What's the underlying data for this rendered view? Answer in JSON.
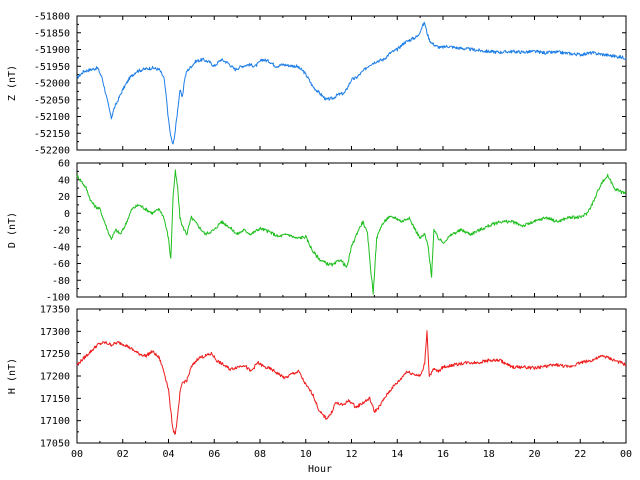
{
  "chart_data": [
    {
      "type": "line",
      "ylabel": "Z (nT)",
      "ylim": [
        -52200,
        -51800
      ],
      "yticks": [
        -51800,
        -51850,
        -51900,
        -51950,
        -52000,
        -52050,
        -52100,
        -52150,
        -52200
      ],
      "xlim": [
        0,
        24
      ],
      "grid": false,
      "series": [
        {
          "color": "#1e7ee6",
          "x": [
            0,
            0.3,
            0.6,
            0.9,
            1.1,
            1.3,
            1.5,
            1.6,
            1.8,
            2.0,
            2.3,
            2.6,
            3.0,
            3.3,
            3.6,
            3.8,
            3.9,
            4.0,
            4.1,
            4.2,
            4.3,
            4.4,
            4.5,
            4.6,
            4.7,
            4.8,
            5.0,
            5.2,
            5.5,
            5.8,
            6.0,
            6.3,
            6.6,
            6.9,
            7.2,
            7.5,
            7.8,
            8.1,
            8.4,
            8.7,
            9.0,
            9.3,
            9.6,
            9.9,
            10.1,
            10.3,
            10.6,
            10.9,
            11.2,
            11.4,
            11.7,
            12.0,
            12.2,
            12.5,
            12.8,
            13.1,
            13.4,
            13.7,
            14.0,
            14.3,
            14.6,
            14.9,
            15.1,
            15.2,
            15.3,
            15.4,
            15.5,
            15.6,
            15.7,
            15.9,
            16.2,
            16.6,
            17.0,
            17.5,
            18.0,
            18.5,
            19.0,
            19.5,
            20.0,
            20.5,
            21.0,
            21.5,
            22.0,
            22.5,
            23.0,
            23.5,
            24.0
          ],
          "values": [
            -51985,
            -51965,
            -51960,
            -51955,
            -51985,
            -52045,
            -52105,
            -52080,
            -52050,
            -52020,
            -51985,
            -51965,
            -51958,
            -51955,
            -51960,
            -51985,
            -52040,
            -52110,
            -52160,
            -52185,
            -52140,
            -52080,
            -52020,
            -52045,
            -51990,
            -51965,
            -51950,
            -51935,
            -51930,
            -51938,
            -51950,
            -51930,
            -51940,
            -51960,
            -51950,
            -51945,
            -51950,
            -51930,
            -51935,
            -51950,
            -51945,
            -51948,
            -51950,
            -51965,
            -51985,
            -52010,
            -52030,
            -52050,
            -52045,
            -52035,
            -52030,
            -51990,
            -51985,
            -51965,
            -51945,
            -51935,
            -51930,
            -51910,
            -51900,
            -51880,
            -51870,
            -51860,
            -51830,
            -51820,
            -51850,
            -51870,
            -51880,
            -51885,
            -51890,
            -51895,
            -51890,
            -51895,
            -51898,
            -51902,
            -51906,
            -51908,
            -51906,
            -51908,
            -51906,
            -51910,
            -51908,
            -51912,
            -51915,
            -51910,
            -51915,
            -51920,
            -51925
          ]
        }
      ]
    },
    {
      "type": "line",
      "ylabel": "D (nT)",
      "ylim": [
        -100,
        60
      ],
      "yticks": [
        60,
        40,
        20,
        0,
        -20,
        -40,
        -60,
        -80,
        -100
      ],
      "xlim": [
        0,
        24
      ],
      "grid": false,
      "series": [
        {
          "color": "#1fbf1f",
          "x": [
            0,
            0.2,
            0.4,
            0.6,
            0.8,
            1.0,
            1.2,
            1.4,
            1.5,
            1.7,
            1.9,
            2.1,
            2.4,
            2.7,
            3.0,
            3.3,
            3.6,
            3.8,
            4.0,
            4.1,
            4.2,
            4.3,
            4.4,
            4.5,
            4.6,
            4.8,
            5.0,
            5.3,
            5.6,
            6.0,
            6.3,
            6.6,
            7.0,
            7.3,
            7.6,
            8.0,
            8.4,
            8.8,
            9.2,
            9.6,
            10.0,
            10.3,
            10.6,
            10.9,
            11.2,
            11.5,
            11.8,
            12.0,
            12.3,
            12.5,
            12.7,
            12.85,
            12.95,
            13.1,
            13.3,
            13.6,
            13.9,
            14.2,
            14.5,
            14.8,
            15.0,
            15.2,
            15.35,
            15.5,
            15.6,
            15.8,
            16.0,
            16.4,
            16.8,
            17.2,
            17.6,
            18.0,
            18.5,
            19.0,
            19.5,
            20.0,
            20.5,
            21.0,
            21.5,
            22.0,
            22.3,
            22.6,
            22.9,
            23.2,
            23.5,
            23.8,
            24.0
          ],
          "values": [
            45,
            38,
            30,
            15,
            8,
            5,
            -10,
            -25,
            -30,
            -20,
            -25,
            -15,
            5,
            10,
            5,
            0,
            5,
            -5,
            -30,
            -55,
            20,
            50,
            30,
            -5,
            -15,
            -25,
            -5,
            -15,
            -25,
            -20,
            -10,
            -15,
            -25,
            -20,
            -25,
            -18,
            -22,
            -28,
            -25,
            -30,
            -28,
            -45,
            -55,
            -60,
            -62,
            -55,
            -65,
            -40,
            -20,
            -10,
            -25,
            -70,
            -95,
            -30,
            -15,
            -5,
            -5,
            -10,
            -5,
            -20,
            -30,
            -25,
            -40,
            -75,
            -20,
            -30,
            -35,
            -25,
            -20,
            -25,
            -20,
            -15,
            -10,
            -10,
            -15,
            -10,
            -5,
            -10,
            -5,
            -5,
            0,
            15,
            35,
            45,
            30,
            25,
            25
          ]
        }
      ]
    },
    {
      "type": "line",
      "xlabel": "Hour",
      "ylabel": "H (nT)",
      "ylim": [
        17050,
        17350
      ],
      "yticks": [
        17350,
        17300,
        17250,
        17200,
        17150,
        17100,
        17050
      ],
      "xlim": [
        0,
        24
      ],
      "xticks": [
        "00",
        "02",
        "04",
        "06",
        "08",
        "10",
        "12",
        "14",
        "16",
        "18",
        "20",
        "22",
        "00"
      ],
      "grid": false,
      "series": [
        {
          "color": "#ee1c1c",
          "x": [
            0,
            0.3,
            0.6,
            0.9,
            1.2,
            1.5,
            1.8,
            2.1,
            2.4,
            2.7,
            3.0,
            3.3,
            3.6,
            3.8,
            4.0,
            4.1,
            4.2,
            4.3,
            4.4,
            4.5,
            4.6,
            4.8,
            5.0,
            5.3,
            5.6,
            5.9,
            6.1,
            6.4,
            6.7,
            7.0,
            7.3,
            7.6,
            7.9,
            8.2,
            8.5,
            8.8,
            9.1,
            9.4,
            9.7,
            10.0,
            10.3,
            10.6,
            10.9,
            11.1,
            11.3,
            11.6,
            11.9,
            12.2,
            12.5,
            12.8,
            13.0,
            13.2,
            13.5,
            13.8,
            14.1,
            14.4,
            14.7,
            15.0,
            15.1,
            15.2,
            15.3,
            15.4,
            15.6,
            15.8,
            16.0,
            16.5,
            17.0,
            17.5,
            18.0,
            18.5,
            19.0,
            19.5,
            20.0,
            20.5,
            21.0,
            21.5,
            22.0,
            22.5,
            23.0,
            23.5,
            24.0
          ],
          "values": [
            17225,
            17240,
            17255,
            17270,
            17275,
            17270,
            17275,
            17270,
            17260,
            17250,
            17245,
            17255,
            17240,
            17210,
            17170,
            17120,
            17080,
            17070,
            17110,
            17160,
            17185,
            17190,
            17220,
            17240,
            17245,
            17250,
            17235,
            17225,
            17215,
            17220,
            17225,
            17210,
            17230,
            17220,
            17215,
            17205,
            17195,
            17205,
            17210,
            17180,
            17160,
            17120,
            17105,
            17115,
            17140,
            17135,
            17145,
            17130,
            17140,
            17150,
            17120,
            17130,
            17155,
            17175,
            17190,
            17210,
            17205,
            17200,
            17210,
            17230,
            17300,
            17200,
            17215,
            17210,
            17220,
            17225,
            17230,
            17230,
            17235,
            17235,
            17220,
            17220,
            17218,
            17222,
            17225,
            17220,
            17230,
            17235,
            17245,
            17235,
            17225
          ]
        }
      ]
    }
  ]
}
